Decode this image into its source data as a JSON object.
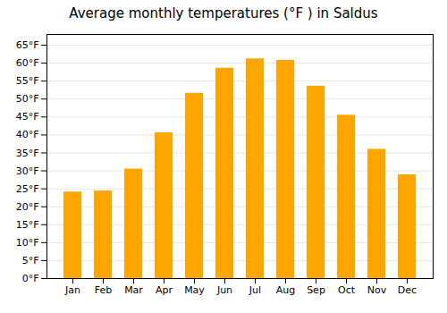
{
  "chart_data": {
    "type": "bar",
    "title": "Average monthly temperatures (°F ) in Saldus",
    "categories": [
      "Jan",
      "Feb",
      "Mar",
      "Apr",
      "May",
      "Jun",
      "Jul",
      "Aug",
      "Sep",
      "Oct",
      "Nov",
      "Dec"
    ],
    "values": [
      24.1,
      24.4,
      30.5,
      40.6,
      51.6,
      58.6,
      61.2,
      60.8,
      53.6,
      45.5,
      36.0,
      28.9
    ],
    "color": "#FFA500",
    "ylim": [
      0,
      68
    ],
    "yticks": [
      {
        "value": 0,
        "label": "0°F"
      },
      {
        "value": 5,
        "label": "5°F"
      },
      {
        "value": 10,
        "label": "10°F"
      },
      {
        "value": 15,
        "label": "15°F"
      },
      {
        "value": 20,
        "label": "20°F"
      },
      {
        "value": 25,
        "label": "25°F"
      },
      {
        "value": 30,
        "label": "30°F"
      },
      {
        "value": 35,
        "label": "35°F"
      },
      {
        "value": 40,
        "label": "40°F"
      },
      {
        "value": 45,
        "label": "45°F"
      },
      {
        "value": 50,
        "label": "50°F"
      },
      {
        "value": 55,
        "label": "55°F"
      },
      {
        "value": 60,
        "label": "60°F"
      },
      {
        "value": 65,
        "label": "65°F"
      }
    ],
    "grid": true
  }
}
